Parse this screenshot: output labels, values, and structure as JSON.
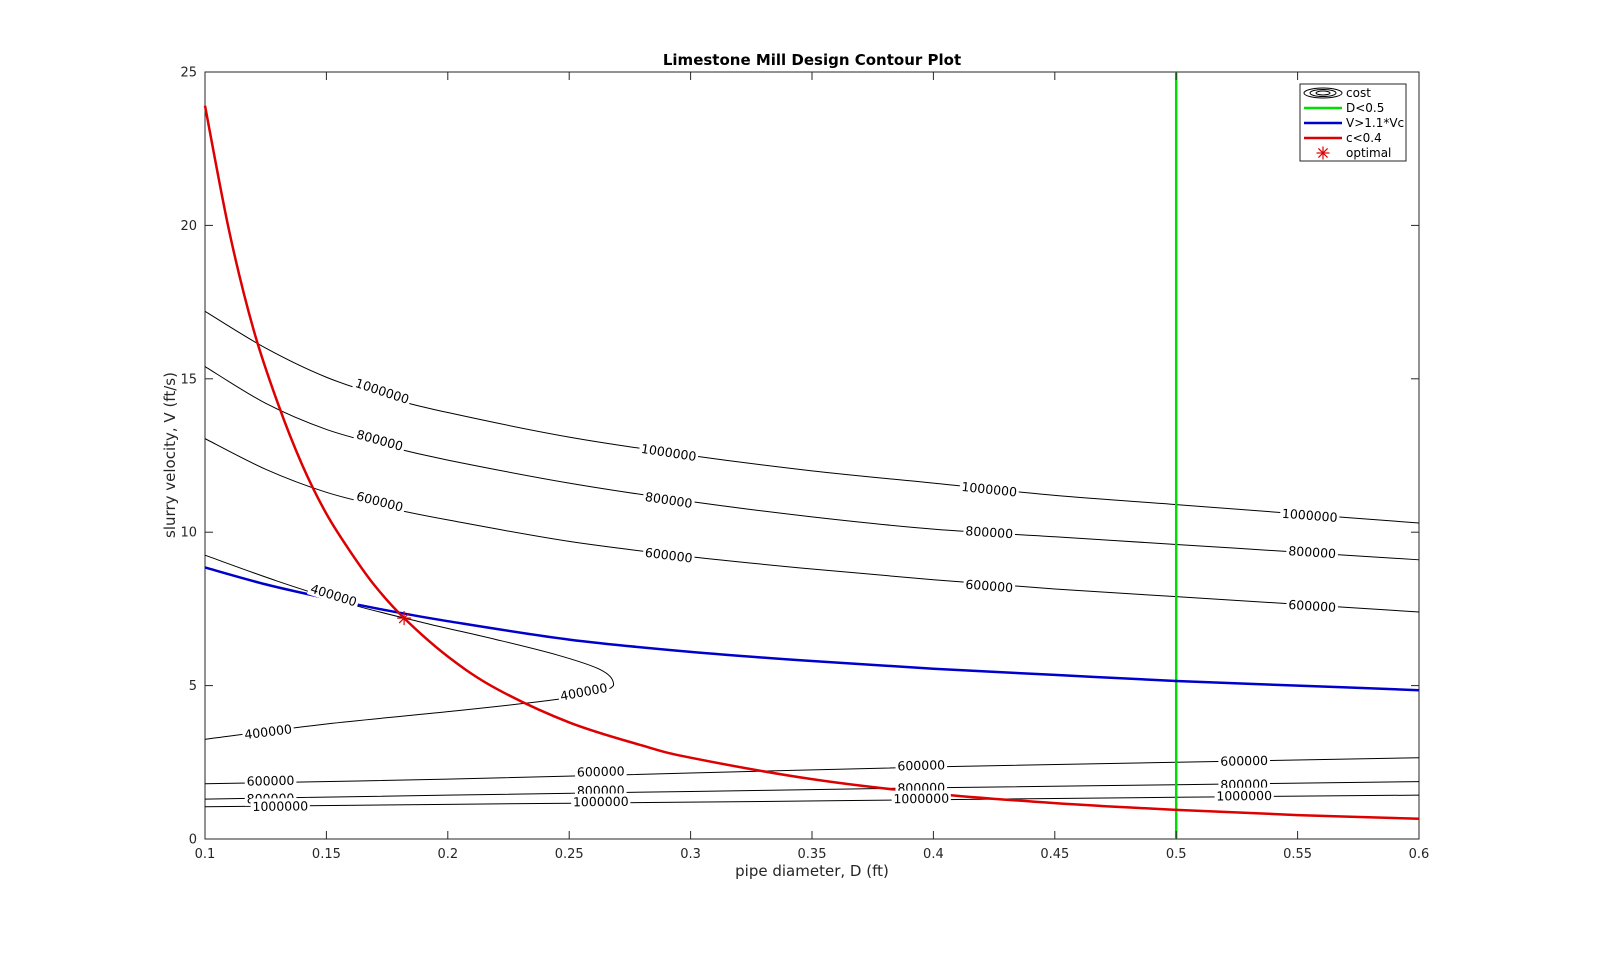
{
  "chart_data": {
    "type": "line",
    "title": "Limestone Mill Design Contour Plot",
    "xlabel": "pipe diameter, D (ft)",
    "ylabel": "slurry velocity, V (ft/s)",
    "xlim": [
      0.1,
      0.6
    ],
    "ylim": [
      0,
      25
    ],
    "xticks": [
      0.1,
      0.15,
      0.2,
      0.25,
      0.3,
      0.35,
      0.4,
      0.45,
      0.5,
      0.55,
      0.6
    ],
    "yticks": [
      0,
      5,
      10,
      15,
      20,
      25
    ],
    "xtick_labels": [
      "0.1",
      "0.15",
      "0.2",
      "0.25",
      "0.3",
      "0.35",
      "0.4",
      "0.45",
      "0.5",
      "0.55",
      "0.6"
    ],
    "ytick_labels": [
      "0",
      "5",
      "10",
      "15",
      "20",
      "25"
    ],
    "grid": false,
    "legend_position": "top-right",
    "legend": [
      {
        "label": "cost",
        "style": "contour",
        "color": "#000000"
      },
      {
        "label": "D<0.5",
        "style": "line",
        "color": "#00dd00"
      },
      {
        "label": "V>1.1*Vc",
        "style": "line",
        "color": "#0000cc"
      },
      {
        "label": "c<0.4",
        "style": "line",
        "color": "#dd0000"
      },
      {
        "label": "optimal",
        "style": "marker",
        "color": "#dd0000"
      }
    ],
    "contours": [
      {
        "level": "1000000",
        "branch": "upper",
        "x": [
          0.1,
          0.125,
          0.15,
          0.175,
          0.2,
          0.25,
          0.3,
          0.35,
          0.4,
          0.45,
          0.5,
          0.55,
          0.6
        ],
        "y": [
          17.2,
          16.0,
          15.05,
          14.4,
          13.9,
          13.1,
          12.5,
          12.0,
          11.6,
          11.2,
          10.9,
          10.6,
          10.3
        ]
      },
      {
        "level": "800000",
        "branch": "upper",
        "x": [
          0.1,
          0.125,
          0.15,
          0.175,
          0.2,
          0.25,
          0.3,
          0.35,
          0.4,
          0.45,
          0.5,
          0.55,
          0.6
        ],
        "y": [
          15.4,
          14.2,
          13.35,
          12.8,
          12.35,
          11.6,
          11.0,
          10.5,
          10.1,
          9.85,
          9.6,
          9.35,
          9.1
        ]
      },
      {
        "level": "600000",
        "branch": "upper",
        "x": [
          0.1,
          0.125,
          0.15,
          0.175,
          0.2,
          0.25,
          0.3,
          0.35,
          0.4,
          0.45,
          0.5,
          0.55,
          0.6
        ],
        "y": [
          13.05,
          12.05,
          11.3,
          10.8,
          10.4,
          9.7,
          9.2,
          8.8,
          8.45,
          8.15,
          7.9,
          7.65,
          7.4
        ]
      },
      {
        "level": "400000",
        "branch": "closed",
        "x": [
          0.1,
          0.13,
          0.16,
          0.19,
          0.22,
          0.245,
          0.262,
          0.268,
          0.265,
          0.245,
          0.2,
          0.15,
          0.1
        ],
        "y": [
          9.25,
          8.4,
          7.65,
          7.05,
          6.5,
          6.0,
          5.55,
          5.15,
          4.85,
          4.55,
          4.15,
          3.75,
          3.25
        ]
      },
      {
        "level": "600000",
        "branch": "lower",
        "x": [
          0.1,
          0.2,
          0.3,
          0.4,
          0.5,
          0.6
        ],
        "y": [
          1.8,
          1.95,
          2.15,
          2.35,
          2.5,
          2.65
        ]
      },
      {
        "level": "800000",
        "branch": "lower",
        "x": [
          0.1,
          0.2,
          0.3,
          0.4,
          0.5,
          0.6
        ],
        "y": [
          1.3,
          1.43,
          1.55,
          1.67,
          1.77,
          1.87
        ]
      },
      {
        "level": "1000000",
        "branch": "lower",
        "x": [
          0.1,
          0.2,
          0.3,
          0.4,
          0.5,
          0.6
        ],
        "y": [
          1.05,
          1.13,
          1.2,
          1.28,
          1.36,
          1.43
        ]
      }
    ],
    "contour_labels": [
      {
        "text": "1000000",
        "x": 0.173,
        "y": 14.6
      },
      {
        "text": "1000000",
        "x": 0.291,
        "y": 12.6
      },
      {
        "text": "1000000",
        "x": 0.423,
        "y": 11.4
      },
      {
        "text": "1000000",
        "x": 0.555,
        "y": 10.55
      },
      {
        "text": "800000",
        "x": 0.172,
        "y": 13.0
      },
      {
        "text": "800000",
        "x": 0.291,
        "y": 11.05
      },
      {
        "text": "800000",
        "x": 0.423,
        "y": 10.0
      },
      {
        "text": "800000",
        "x": 0.556,
        "y": 9.35
      },
      {
        "text": "600000",
        "x": 0.172,
        "y": 11.0
      },
      {
        "text": "600000",
        "x": 0.291,
        "y": 9.25
      },
      {
        "text": "600000",
        "x": 0.423,
        "y": 8.25
      },
      {
        "text": "600000",
        "x": 0.556,
        "y": 7.6
      },
      {
        "text": "400000",
        "x": 0.153,
        "y": 7.95
      },
      {
        "text": "400000",
        "x": 0.256,
        "y": 4.8
      },
      {
        "text": "400000",
        "x": 0.126,
        "y": 3.5
      },
      {
        "text": "600000",
        "x": 0.127,
        "y": 1.9
      },
      {
        "text": "600000",
        "x": 0.263,
        "y": 2.2
      },
      {
        "text": "600000",
        "x": 0.395,
        "y": 2.4
      },
      {
        "text": "600000",
        "x": 0.528,
        "y": 2.55
      },
      {
        "text": "800000",
        "x": 0.127,
        "y": 1.32
      },
      {
        "text": "800000",
        "x": 0.263,
        "y": 1.58
      },
      {
        "text": "800000",
        "x": 0.395,
        "y": 1.67
      },
      {
        "text": "800000",
        "x": 0.528,
        "y": 1.78
      },
      {
        "text": "1000000",
        "x": 0.131,
        "y": 1.07
      },
      {
        "text": "1000000",
        "x": 0.263,
        "y": 1.22
      },
      {
        "text": "1000000",
        "x": 0.395,
        "y": 1.32
      },
      {
        "text": "1000000",
        "x": 0.528,
        "y": 1.41
      }
    ],
    "series": [
      {
        "name": "D<0.5",
        "color": "#00dd00",
        "x": [
          0.5,
          0.5
        ],
        "y": [
          0,
          25
        ]
      },
      {
        "name": "V>1.1*Vc",
        "color": "#0000cc",
        "x": [
          0.1,
          0.125,
          0.15,
          0.175,
          0.2,
          0.25,
          0.3,
          0.35,
          0.4,
          0.45,
          0.5,
          0.55,
          0.6
        ],
        "y": [
          8.85,
          8.3,
          7.85,
          7.45,
          7.1,
          6.5,
          6.1,
          5.8,
          5.55,
          5.35,
          5.15,
          5.0,
          4.85
        ]
      },
      {
        "name": "c<0.4",
        "color": "#dd0000",
        "x": [
          0.1,
          0.11,
          0.12,
          0.13,
          0.14,
          0.15,
          0.16,
          0.17,
          0.182,
          0.2,
          0.22,
          0.25,
          0.28,
          0.3,
          0.35,
          0.4,
          0.45,
          0.5,
          0.55,
          0.6
        ],
        "y": [
          23.9,
          19.8,
          16.6,
          14.2,
          12.2,
          10.6,
          9.35,
          8.25,
          7.2,
          5.95,
          4.9,
          3.8,
          3.05,
          2.65,
          1.95,
          1.48,
          1.17,
          0.95,
          0.78,
          0.66
        ]
      }
    ],
    "markers": [
      {
        "name": "optimal",
        "x": 0.182,
        "y": 7.2,
        "color": "#dd0000",
        "symbol": "asterisk"
      }
    ]
  }
}
